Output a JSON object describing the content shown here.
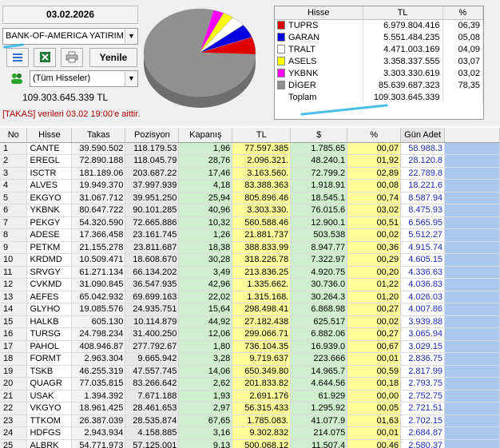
{
  "header": {
    "date": "03.02.2026",
    "broker": "BANK-OF-AMERICA YATIRIM",
    "filter": "(Tüm Hisseler)",
    "refresh_label": "Yenile",
    "total_text": "109.303.645.339 TL",
    "takas_note": "[TAKAS] verileri 03.02 19:00'e aittir."
  },
  "legend": {
    "headers": [
      "Hisse",
      "TL",
      "%"
    ],
    "rows": [
      {
        "name": "TUPRS",
        "tl": "6.979.804.416",
        "pct": "06,39",
        "color": "#e00000"
      },
      {
        "name": "GARAN",
        "tl": "5.551.484.235",
        "pct": "05,08",
        "color": "#0000e0"
      },
      {
        "name": "TRALT",
        "tl": "4.471.003.169",
        "pct": "04,09",
        "color": "#ffffff"
      },
      {
        "name": "ASELS",
        "tl": "3.358.337.555",
        "pct": "03,07",
        "color": "#ffff00"
      },
      {
        "name": "YKBNK",
        "tl": "3.303.330.619",
        "pct": "03,02",
        "color": "#ff00ff"
      },
      {
        "name": "DİGER",
        "tl": "85.639.687.323",
        "pct": "78,35",
        "color": "#909090"
      },
      {
        "name": "Toplam",
        "tl": "109.303.645.339",
        "pct": "",
        "color": ""
      }
    ]
  },
  "pie": {
    "slices": [
      {
        "name": "TUPRS",
        "pct": 6.39,
        "color": "#e00000"
      },
      {
        "name": "GARAN",
        "pct": 5.08,
        "color": "#0000e0"
      },
      {
        "name": "TRALT",
        "pct": 4.09,
        "color": "#ffffff"
      },
      {
        "name": "ASELS",
        "pct": 3.07,
        "color": "#ffff00"
      },
      {
        "name": "YKBNK",
        "pct": 3.02,
        "color": "#ff00ff"
      },
      {
        "name": "DİGER",
        "pct": 78.35,
        "color": "#909090"
      }
    ]
  },
  "grid": {
    "columns": [
      "No",
      "Hisse",
      "Takas",
      "Pozisyon",
      "Kapanış",
      "TL",
      "$",
      "%",
      "Gün Adet"
    ],
    "rows": [
      [
        "1",
        "CANTE",
        "39.590.502",
        "118.179.53",
        "1,96",
        "77.597.385",
        "1.785.65",
        "00,07",
        "58.988.3"
      ],
      [
        "2",
        "EREGL",
        "72.890.188",
        "118.045.79",
        "28,76",
        "2.096.321.",
        "48.240.1",
        "01,92",
        "28.120.8"
      ],
      [
        "3",
        "ISCTR",
        "181.189.06",
        "203.687.22",
        "17,46",
        "3.163.560.",
        "72.799.2",
        "02,89",
        "22.789.8"
      ],
      [
        "4",
        "ALVES",
        "19.949.370",
        "37.997.939",
        "4,18",
        "83.388.363",
        "1.918.91",
        "00,08",
        "18.221.6"
      ],
      [
        "5",
        "EKGYO",
        "31.067.712",
        "39.951.250",
        "25,94",
        "805.896.46",
        "18.545.1",
        "00,74",
        "8.587.94"
      ],
      [
        "6",
        "YKBNK",
        "80.647.722",
        "90.101.285",
        "40,96",
        "3.303.330.",
        "76.015.6",
        "03,02",
        "8.475.93"
      ],
      [
        "7",
        "PEKGY",
        "54.320.590",
        "72.665.886",
        "10,32",
        "560.588.46",
        "12.900.1",
        "00,51",
        "6.565.95"
      ],
      [
        "8",
        "ADESE",
        "17.366.458",
        "23.161.745",
        "1,26",
        "21.881.737",
        "503.538",
        "00,02",
        "5.512.27"
      ],
      [
        "9",
        "PETKM",
        "21.155.278",
        "23.811.687",
        "18,38",
        "388.833.99",
        "8.947.77",
        "00,36",
        "4.915.74"
      ],
      [
        "10",
        "KRDMD",
        "10.509.471",
        "18.608.670",
        "30,28",
        "318.226.78",
        "7.322.97",
        "00,29",
        "4.605.15"
      ],
      [
        "11",
        "SRVGY",
        "61.271.134",
        "66.134.202",
        "3,49",
        "213.836.25",
        "4.920.75",
        "00,20",
        "4.336.63"
      ],
      [
        "12",
        "CVKMD",
        "31.090.845",
        "36.547.935",
        "42,96",
        "1.335.662.",
        "30.736.0",
        "01,22",
        "4.036.83"
      ],
      [
        "13",
        "AEFES",
        "65.042.932",
        "69.699.163",
        "22,02",
        "1.315.168.",
        "30.264.3",
        "01,20",
        "4.026.03"
      ],
      [
        "14",
        "GLYHO",
        "19.085.576",
        "24.935.751",
        "15,64",
        "298.498.41",
        "6.868.98",
        "00,27",
        "4.007.86"
      ],
      [
        "15",
        "HALKB",
        "605.130",
        "10.114.879",
        "44,92",
        "27.182.438",
        "625.517",
        "00,02",
        "3.939.88"
      ],
      [
        "16",
        "TURSG",
        "24.798.234",
        "31.400.250",
        "12,06",
        "299.066.71",
        "6.882.06",
        "00,27",
        "3.065.94"
      ],
      [
        "17",
        "PAHOL",
        "408.946.87",
        "277.792.67",
        "1,80",
        "736.104.35",
        "16.939.0",
        "00,67",
        "3.029.15"
      ],
      [
        "18",
        "FORMT",
        "2.963.304",
        "9.665.942",
        "3,28",
        "9.719.637",
        "223.666",
        "00,01",
        "2.836.75"
      ],
      [
        "19",
        "TSKB",
        "46.255.319",
        "47.557.745",
        "14,06",
        "650.349.80",
        "14.965.7",
        "00,59",
        "2.817.99"
      ],
      [
        "20",
        "QUAGR",
        "77.035.815",
        "83.266.642",
        "2,62",
        "201.833.82",
        "4.644.56",
        "00,18",
        "2.793.75"
      ],
      [
        "21",
        "USAK",
        "1.394.392",
        "7.671.188",
        "1,93",
        "2.691.176",
        "61.929",
        "00,00",
        "2.752.75"
      ],
      [
        "22",
        "VKGYO",
        "18.961.425",
        "28.461.653",
        "2,97",
        "56.315.433",
        "1.295.92",
        "00,05",
        "2.721.51"
      ],
      [
        "23",
        "TTKOM",
        "26.387.039",
        "28.535.874",
        "67,65",
        "1.785.083.",
        "41.077.9",
        "01,63",
        "2.702.15"
      ],
      [
        "24",
        "HDFGS",
        "2.943.934",
        "4.158.885",
        "3,16",
        "9.302.832",
        "214.075",
        "00,01",
        "2.684.87"
      ],
      [
        "25",
        "ALBRK",
        "54.771.973",
        "57.125.001",
        "9,13",
        "500.068.12",
        "11.507.4",
        "00,46",
        "2.580.37"
      ]
    ]
  }
}
